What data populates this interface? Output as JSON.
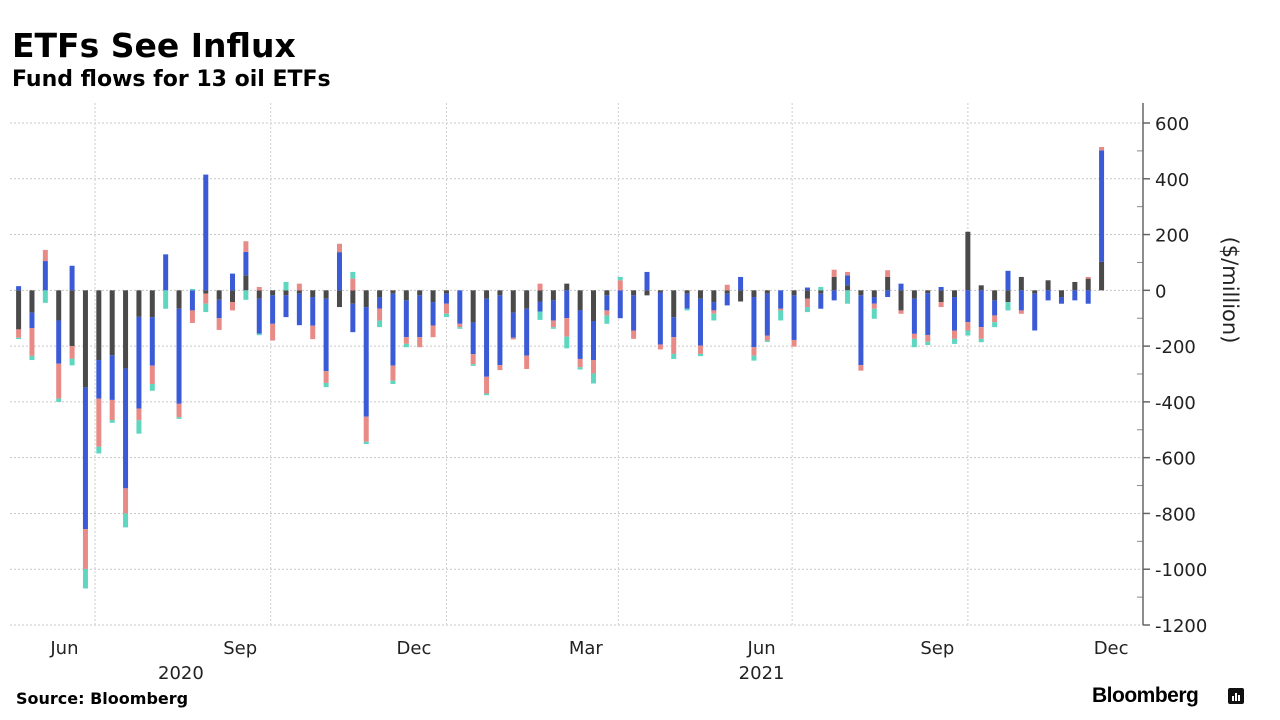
{
  "title": "ETFs See Influx",
  "subtitle": "Fund flows for 13 oil ETFs",
  "source": "Source: Bloomberg",
  "brand": "Bloomberg",
  "chart_data": {
    "type": "bar",
    "stacked": true,
    "title": "ETFs See Influx",
    "subtitle": "Fund flows for 13 oil ETFs",
    "xlabel": "",
    "ylabel": "($/million)",
    "ylim": [
      -1200,
      600
    ],
    "yticks": [
      600,
      400,
      200,
      0,
      -200,
      -400,
      -600,
      -800,
      -1000,
      -1200
    ],
    "ytick_labels": [
      "600",
      "400",
      "200",
      "0",
      "-200",
      "-400",
      "-600",
      "-800",
      "-1000",
      "-1200"
    ],
    "y_axis_side": "right",
    "grid": true,
    "legend": "none",
    "xlim": [
      "2020-05-12",
      "2021-12-21"
    ],
    "x_month_labels": [
      {
        "label": "Jun",
        "date": "2020-06-15"
      },
      {
        "label": "Sep",
        "date": "2020-09-15"
      },
      {
        "label": "Dec",
        "date": "2020-12-15"
      },
      {
        "label": "Mar",
        "date": "2021-03-15"
      },
      {
        "label": "Jun",
        "date": "2021-06-15"
      },
      {
        "label": "Sep",
        "date": "2021-09-15"
      },
      {
        "label": "Dec",
        "date": "2021-12-15"
      }
    ],
    "x_year_labels": [
      {
        "label": "2020",
        "date": "2020-08-15"
      },
      {
        "label": "2021",
        "date": "2021-06-15"
      }
    ],
    "x_gridlines": [
      "2020-07-01",
      "2020-10-01",
      "2021-01-01",
      "2021-04-01",
      "2021-07-01",
      "2021-10-01"
    ],
    "dates": [
      "2020-05-22",
      "2020-05-29",
      "2020-06-05",
      "2020-06-12",
      "2020-06-19",
      "2020-06-26",
      "2020-07-03",
      "2020-07-10",
      "2020-07-17",
      "2020-07-24",
      "2020-07-31",
      "2020-08-07",
      "2020-08-14",
      "2020-08-21",
      "2020-08-28",
      "2020-09-04",
      "2020-09-11",
      "2020-09-18",
      "2020-09-25",
      "2020-10-02",
      "2020-10-09",
      "2020-10-16",
      "2020-10-23",
      "2020-10-30",
      "2020-11-06",
      "2020-11-13",
      "2020-11-20",
      "2020-11-27",
      "2020-12-04",
      "2020-12-11",
      "2020-12-18",
      "2020-12-25",
      "2021-01-01",
      "2021-01-08",
      "2021-01-15",
      "2021-01-22",
      "2021-01-29",
      "2021-02-05",
      "2021-02-12",
      "2021-02-19",
      "2021-02-26",
      "2021-03-05",
      "2021-03-12",
      "2021-03-19",
      "2021-03-26",
      "2021-04-02",
      "2021-04-09",
      "2021-04-16",
      "2021-04-23",
      "2021-04-30",
      "2021-05-07",
      "2021-05-14",
      "2021-05-21",
      "2021-05-28",
      "2021-06-04",
      "2021-06-11",
      "2021-06-18",
      "2021-06-25",
      "2021-07-02",
      "2021-07-09",
      "2021-07-16",
      "2021-07-23",
      "2021-07-30",
      "2021-08-06",
      "2021-08-13",
      "2021-08-20",
      "2021-08-27",
      "2021-09-03",
      "2021-09-10",
      "2021-09-17",
      "2021-09-24",
      "2021-10-01",
      "2021-10-08",
      "2021-10-15",
      "2021-10-22",
      "2021-10-29",
      "2021-11-05",
      "2021-11-12",
      "2021-11-19",
      "2021-11-26",
      "2021-12-03",
      "2021-12-10"
    ],
    "series": [
      {
        "color": "#4a4a4a",
        "values": [
          -140,
          -80,
          0,
          -108,
          -200,
          -348,
          -250,
          -233,
          -280,
          -95,
          -96,
          0,
          -66,
          0,
          -12,
          -34,
          -42,
          54,
          -30,
          -18,
          -18,
          -12,
          -24,
          -30,
          -60,
          -48,
          -60,
          -24,
          -12,
          -36,
          -18,
          -42,
          -12,
          0,
          -115,
          -30,
          -18,
          -80,
          -66,
          -40,
          -36,
          24,
          -72,
          -110,
          -18,
          0,
          -18,
          -18,
          -8,
          -96,
          -12,
          -30,
          -42,
          -12,
          -40,
          -24,
          -12,
          0,
          -18,
          -30,
          -12,
          48,
          18,
          -18,
          -24,
          48,
          -72,
          -30,
          -10,
          -42,
          -24,
          210,
          18,
          -36,
          -42,
          48,
          -12,
          36,
          -24,
          30,
          42,
          102
        ]
      },
      {
        "color": "#3b5bd6",
        "values": [
          15,
          -55,
          105,
          -155,
          88,
          -508,
          -138,
          -160,
          -430,
          -329,
          -174,
          129,
          -341,
          -72,
          415,
          -66,
          60,
          84,
          -125,
          -102,
          -78,
          -113,
          -103,
          -260,
          137,
          -102,
          -393,
          -42,
          -258,
          -132,
          -150,
          -84,
          -36,
          -120,
          -114,
          -280,
          -250,
          -90,
          -168,
          -36,
          -72,
          -100,
          -174,
          -140,
          -54,
          -100,
          -126,
          66,
          -186,
          -72,
          -54,
          -168,
          -30,
          -42,
          48,
          -180,
          -150,
          -66,
          -160,
          10,
          -54,
          -36,
          36,
          -250,
          -24,
          -24,
          24,
          -126,
          -150,
          12,
          -120,
          -114,
          -132,
          -54,
          70,
          -72,
          -132,
          -36,
          -24,
          -36,
          -48,
          400
        ]
      },
      {
        "color": "#e88a86",
        "values": [
          -30,
          -100,
          40,
          -125,
          -45,
          -143,
          -173,
          -72,
          -90,
          -42,
          -66,
          0,
          -48,
          -45,
          -36,
          -42,
          -30,
          38,
          12,
          -60,
          0,
          24,
          -48,
          -42,
          30,
          42,
          -90,
          -42,
          -54,
          -24,
          -36,
          -42,
          -36,
          -12,
          -36,
          -60,
          -18,
          -6,
          -48,
          24,
          -24,
          -66,
          -30,
          -48,
          -18,
          36,
          -30,
          0,
          -18,
          -60,
          0,
          -30,
          -12,
          20,
          0,
          -30,
          -18,
          -6,
          -24,
          -30,
          0,
          26,
          12,
          -20,
          -18,
          24,
          -12,
          -18,
          -24,
          -18,
          -30,
          -30,
          -42,
          -24,
          0,
          -12,
          0,
          0,
          0,
          0,
          6,
          12
        ]
      },
      {
        "color": "#5fd6bf",
        "values": [
          -5,
          -15,
          -45,
          -12,
          -24,
          -70,
          -24,
          -10,
          -50,
          -48,
          -24,
          -66,
          -6,
          5,
          -30,
          0,
          0,
          -34,
          -6,
          0,
          30,
          0,
          0,
          -15,
          0,
          24,
          -8,
          -24,
          -12,
          -12,
          0,
          0,
          -12,
          -6,
          -6,
          -6,
          0,
          0,
          0,
          -30,
          -6,
          -42,
          -8,
          -36,
          -30,
          12,
          0,
          0,
          0,
          -18,
          -6,
          -8,
          -24,
          0,
          0,
          -18,
          -5,
          -36,
          0,
          -18,
          12,
          0,
          -48,
          0,
          -36,
          0,
          0,
          -30,
          -12,
          0,
          -18,
          -18,
          -12,
          -18,
          -30,
          0,
          0,
          0,
          0,
          0,
          0,
          0
        ]
      }
    ]
  }
}
